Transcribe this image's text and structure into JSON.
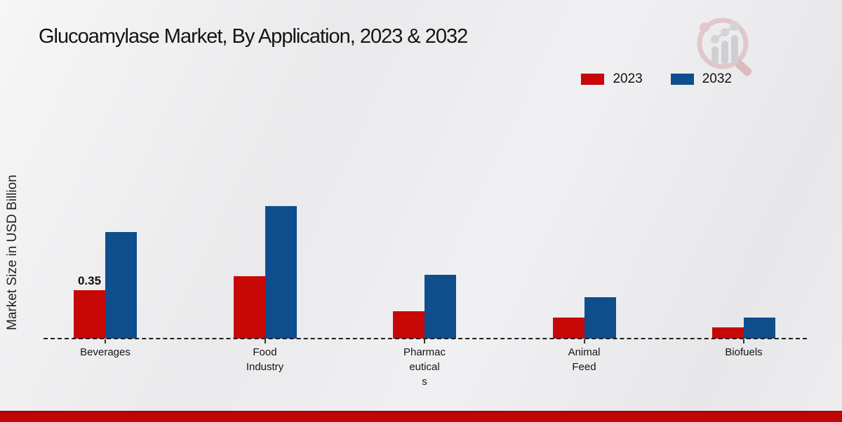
{
  "page": {
    "title": "Glucoamylase Market, By Application, 2023 & 2032",
    "y_axis_label": "Market Size in USD Billion"
  },
  "colors": {
    "series_2023": "#c80707",
    "series_2032": "#0f4e8c",
    "background": "#ececee",
    "bottom_band": "#bf0505",
    "baseline": "#1f1f1f"
  },
  "icons": {
    "watermark": "magnifier-bar-chart-logo-icon"
  },
  "chart_data": {
    "type": "bar",
    "title": "Glucoamylase Market, By Application, 2023 & 2032",
    "ylabel": "Market Size in USD Billion",
    "xlabel": "",
    "categories": [
      "Beverages",
      "Food\nIndustry",
      "Pharmac\neutical\ns",
      "Animal\nFeed",
      "Biofuels"
    ],
    "series": [
      {
        "name": "2023",
        "color": "#c80707",
        "values": [
          0.35,
          0.45,
          0.2,
          0.15,
          0.08
        ]
      },
      {
        "name": "2032",
        "color": "#0f4e8c",
        "values": [
          0.77,
          0.96,
          0.46,
          0.3,
          0.15
        ]
      }
    ],
    "data_labels": [
      {
        "series_index": 0,
        "category_index": 0,
        "text": "0.35"
      }
    ],
    "ylim": [
      0,
      1.0
    ],
    "grid": false,
    "axis_style": "dashed-baseline-only, no y-axis ticks",
    "legend_position": "top-right"
  }
}
